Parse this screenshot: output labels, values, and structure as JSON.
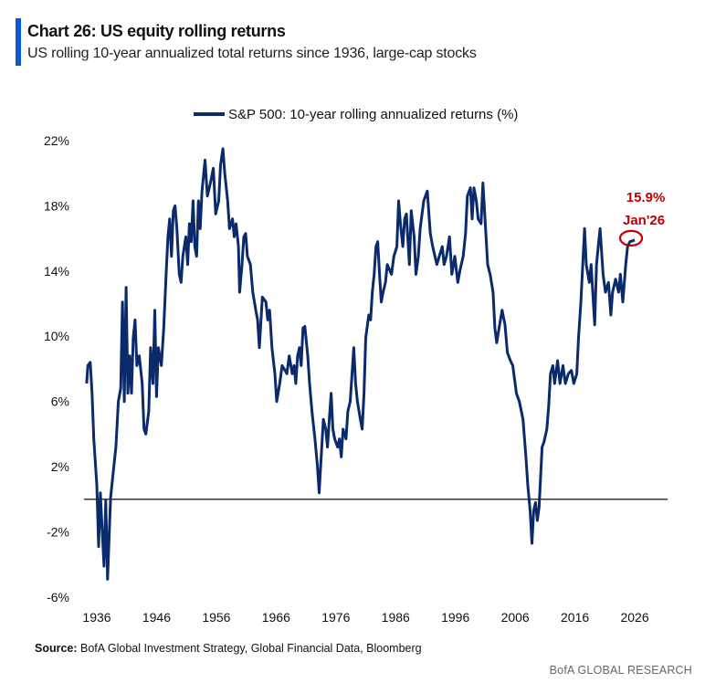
{
  "header": {
    "title": "Chart 26: US equity rolling returns",
    "subtitle": "US rolling 10-year annualized total returns since 1936, large-cap stocks"
  },
  "footer": {
    "source_label": "Source:",
    "source_text": " BofA Global Investment Strategy, Global Financial Data, Bloomberg",
    "brand": "BofA GLOBAL RESEARCH"
  },
  "chart_data": {
    "type": "line",
    "title": "Chart 26: US equity rolling returns",
    "subtitle": "US rolling 10-year annualized total returns since 1936, large-cap stocks",
    "xlabel": "",
    "ylabel": "",
    "xlim": [
      1934,
      2036
    ],
    "ylim": [
      -6,
      22
    ],
    "x_ticks": [
      1936,
      1946,
      1956,
      1966,
      1976,
      1986,
      1996,
      2006,
      2016,
      2026
    ],
    "y_ticks": [
      -6,
      -2,
      2,
      6,
      10,
      14,
      18,
      22
    ],
    "y_tick_labels": [
      "-6%",
      "-2%",
      "2%",
      "6%",
      "10%",
      "14%",
      "18%",
      "22%"
    ],
    "grid": false,
    "reference_line": 0,
    "legend_placement": "top-center",
    "colors": {
      "series": "#0a2a6b",
      "annotation": "#c00000",
      "reference_line": "#333333",
      "accent_bar": "#0a5bd3"
    },
    "annotation": {
      "value_label": "15.9%",
      "date_label": "Jan'26",
      "x": 2026.0,
      "y": 15.9
    },
    "series": [
      {
        "name": "S&P 500: 10-year rolling annualized returns (%)",
        "points": [
          [
            1934.3,
            7.1
          ],
          [
            1934.5,
            8.2
          ],
          [
            1934.9,
            8.4
          ],
          [
            1935.2,
            6.5
          ],
          [
            1935.5,
            3.7
          ],
          [
            1936.0,
            0.9
          ],
          [
            1936.3,
            -2.9
          ],
          [
            1936.6,
            0.4
          ],
          [
            1936.9,
            -1.9
          ],
          [
            1937.2,
            -4.1
          ],
          [
            1937.5,
            -0.1
          ],
          [
            1937.8,
            -4.9
          ],
          [
            1938.3,
            0.1
          ],
          [
            1938.7,
            1.5
          ],
          [
            1939.2,
            3.2
          ],
          [
            1939.6,
            6.0
          ],
          [
            1940.0,
            6.8
          ],
          [
            1940.3,
            12.1
          ],
          [
            1940.6,
            6.0
          ],
          [
            1940.9,
            13.0
          ],
          [
            1941.2,
            6.5
          ],
          [
            1941.5,
            8.8
          ],
          [
            1941.8,
            6.5
          ],
          [
            1942.1,
            9.9
          ],
          [
            1942.4,
            11.0
          ],
          [
            1942.7,
            8.2
          ],
          [
            1943.1,
            8.8
          ],
          [
            1943.6,
            7.1
          ],
          [
            1943.9,
            4.3
          ],
          [
            1944.2,
            4.0
          ],
          [
            1944.7,
            5.4
          ],
          [
            1945.0,
            9.3
          ],
          [
            1945.4,
            7.1
          ],
          [
            1945.7,
            11.6
          ],
          [
            1946.0,
            6.3
          ],
          [
            1946.3,
            9.3
          ],
          [
            1946.8,
            8.2
          ],
          [
            1947.2,
            10.5
          ],
          [
            1947.6,
            13.8
          ],
          [
            1947.9,
            16.1
          ],
          [
            1948.2,
            17.2
          ],
          [
            1948.5,
            14.9
          ],
          [
            1948.8,
            17.7
          ],
          [
            1949.1,
            18.0
          ],
          [
            1949.4,
            16.6
          ],
          [
            1949.8,
            13.8
          ],
          [
            1950.1,
            13.3
          ],
          [
            1950.4,
            14.9
          ],
          [
            1950.9,
            16.1
          ],
          [
            1951.2,
            14.4
          ],
          [
            1951.5,
            16.9
          ],
          [
            1951.8,
            15.8
          ],
          [
            1952.1,
            18.3
          ],
          [
            1952.4,
            15.5
          ],
          [
            1952.7,
            14.9
          ],
          [
            1953.0,
            18.3
          ],
          [
            1953.3,
            16.6
          ],
          [
            1953.6,
            18.9
          ],
          [
            1954.1,
            20.8
          ],
          [
            1954.5,
            18.6
          ],
          [
            1955.0,
            19.4
          ],
          [
            1955.5,
            20.3
          ],
          [
            1955.9,
            17.5
          ],
          [
            1956.4,
            18.3
          ],
          [
            1956.7,
            20.5
          ],
          [
            1957.1,
            21.5
          ],
          [
            1957.4,
            20.0
          ],
          [
            1957.9,
            18.3
          ],
          [
            1958.2,
            16.6
          ],
          [
            1958.7,
            17.2
          ],
          [
            1959.0,
            16.1
          ],
          [
            1959.3,
            16.9
          ],
          [
            1959.7,
            15.5
          ],
          [
            1959.9,
            12.7
          ],
          [
            1960.3,
            14.4
          ],
          [
            1960.6,
            16.1
          ],
          [
            1960.9,
            16.3
          ],
          [
            1961.2,
            14.9
          ],
          [
            1961.7,
            14.4
          ],
          [
            1962.1,
            12.7
          ],
          [
            1962.6,
            11.6
          ],
          [
            1962.9,
            11.0
          ],
          [
            1963.2,
            9.3
          ],
          [
            1963.7,
            12.4
          ],
          [
            1964.3,
            12.1
          ],
          [
            1964.6,
            11.0
          ],
          [
            1964.9,
            11.6
          ],
          [
            1965.3,
            9.3
          ],
          [
            1965.8,
            7.7
          ],
          [
            1966.1,
            6.0
          ],
          [
            1966.6,
            7.1
          ],
          [
            1967.0,
            8.2
          ],
          [
            1967.5,
            7.9
          ],
          [
            1967.8,
            7.7
          ],
          [
            1968.2,
            8.8
          ],
          [
            1968.7,
            7.7
          ],
          [
            1969.0,
            8.2
          ],
          [
            1969.3,
            7.1
          ],
          [
            1969.6,
            8.8
          ],
          [
            1969.9,
            9.3
          ],
          [
            1970.2,
            8.2
          ],
          [
            1970.5,
            10.5
          ],
          [
            1970.8,
            10.6
          ],
          [
            1971.3,
            8.8
          ],
          [
            1971.6,
            7.1
          ],
          [
            1972.0,
            5.4
          ],
          [
            1972.5,
            3.7
          ],
          [
            1972.9,
            2.1
          ],
          [
            1973.2,
            0.4
          ],
          [
            1973.5,
            2.3
          ],
          [
            1973.9,
            4.9
          ],
          [
            1974.3,
            4.3
          ],
          [
            1974.6,
            3.2
          ],
          [
            1974.9,
            4.9
          ],
          [
            1975.2,
            6.5
          ],
          [
            1975.5,
            4.3
          ],
          [
            1975.8,
            3.7
          ],
          [
            1976.3,
            3.2
          ],
          [
            1976.6,
            3.7
          ],
          [
            1976.9,
            2.6
          ],
          [
            1977.2,
            4.3
          ],
          [
            1977.7,
            3.7
          ],
          [
            1978.0,
            5.4
          ],
          [
            1978.4,
            6.0
          ],
          [
            1978.7,
            7.7
          ],
          [
            1979.0,
            9.3
          ],
          [
            1979.3,
            7.1
          ],
          [
            1979.6,
            6.0
          ],
          [
            1980.1,
            4.9
          ],
          [
            1980.4,
            4.3
          ],
          [
            1980.7,
            6.5
          ],
          [
            1981.0,
            9.9
          ],
          [
            1981.5,
            11.3
          ],
          [
            1981.8,
            11.0
          ],
          [
            1982.1,
            12.7
          ],
          [
            1982.4,
            13.8
          ],
          [
            1982.7,
            15.5
          ],
          [
            1983.0,
            15.8
          ],
          [
            1983.3,
            13.8
          ],
          [
            1983.6,
            12.1
          ],
          [
            1983.9,
            12.7
          ],
          [
            1984.3,
            13.3
          ],
          [
            1984.6,
            14.4
          ],
          [
            1985.3,
            13.8
          ],
          [
            1985.7,
            14.9
          ],
          [
            1986.2,
            15.5
          ],
          [
            1986.5,
            18.3
          ],
          [
            1986.8,
            16.9
          ],
          [
            1987.2,
            15.5
          ],
          [
            1987.5,
            17.2
          ],
          [
            1987.8,
            17.5
          ],
          [
            1988.3,
            14.4
          ],
          [
            1988.6,
            17.7
          ],
          [
            1989.1,
            16.1
          ],
          [
            1989.4,
            13.8
          ],
          [
            1989.8,
            14.9
          ],
          [
            1990.1,
            16.6
          ],
          [
            1990.7,
            18.3
          ],
          [
            1991.3,
            18.9
          ],
          [
            1991.8,
            16.3
          ],
          [
            1992.2,
            15.5
          ],
          [
            1992.9,
            14.4
          ],
          [
            1993.3,
            14.9
          ],
          [
            1993.8,
            15.5
          ],
          [
            1994.1,
            14.4
          ],
          [
            1994.5,
            14.9
          ],
          [
            1995.0,
            16.1
          ],
          [
            1995.4,
            13.8
          ],
          [
            1995.9,
            14.9
          ],
          [
            1996.4,
            13.3
          ],
          [
            1996.8,
            14.1
          ],
          [
            1997.3,
            14.9
          ],
          [
            1997.7,
            16.3
          ],
          [
            1998.0,
            18.6
          ],
          [
            1998.5,
            19.1
          ],
          [
            1998.8,
            17.2
          ],
          [
            1999.1,
            19.1
          ],
          [
            1999.5,
            18.3
          ],
          [
            1999.8,
            17.2
          ],
          [
            2000.3,
            16.9
          ],
          [
            2000.6,
            19.4
          ],
          [
            2000.9,
            17.5
          ],
          [
            2001.4,
            14.4
          ],
          [
            2001.8,
            13.8
          ],
          [
            2002.3,
            12.7
          ],
          [
            2002.6,
            10.5
          ],
          [
            2002.9,
            9.6
          ],
          [
            2003.3,
            10.5
          ],
          [
            2003.8,
            11.6
          ],
          [
            2004.3,
            10.7
          ],
          [
            2004.7,
            9.0
          ],
          [
            2005.2,
            8.5
          ],
          [
            2005.6,
            8.2
          ],
          [
            2006.2,
            6.5
          ],
          [
            2006.7,
            6.0
          ],
          [
            2007.3,
            4.9
          ],
          [
            2007.8,
            2.6
          ],
          [
            2008.1,
            0.9
          ],
          [
            2008.5,
            -0.7
          ],
          [
            2008.8,
            -2.7
          ],
          [
            2009.1,
            -0.7
          ],
          [
            2009.4,
            -0.2
          ],
          [
            2009.7,
            -1.3
          ],
          [
            2010.0,
            -0.5
          ],
          [
            2010.5,
            3.2
          ],
          [
            2010.8,
            3.5
          ],
          [
            2011.3,
            4.3
          ],
          [
            2011.6,
            5.7
          ],
          [
            2011.9,
            7.7
          ],
          [
            2012.3,
            8.2
          ],
          [
            2012.6,
            7.1
          ],
          [
            2013.1,
            8.5
          ],
          [
            2013.5,
            7.1
          ],
          [
            2014.0,
            8.2
          ],
          [
            2014.4,
            7.1
          ],
          [
            2014.9,
            7.7
          ],
          [
            2015.4,
            7.9
          ],
          [
            2015.8,
            7.1
          ],
          [
            2016.3,
            7.7
          ],
          [
            2016.6,
            9.9
          ],
          [
            2017.0,
            12.1
          ],
          [
            2017.6,
            16.6
          ],
          [
            2017.9,
            14.4
          ],
          [
            2018.4,
            13.3
          ],
          [
            2018.7,
            14.4
          ],
          [
            2019.3,
            10.7
          ],
          [
            2019.6,
            14.4
          ],
          [
            2019.9,
            15.5
          ],
          [
            2020.2,
            16.6
          ],
          [
            2020.7,
            13.8
          ],
          [
            2021.1,
            12.7
          ],
          [
            2021.6,
            13.3
          ],
          [
            2022.0,
            11.3
          ],
          [
            2022.3,
            12.7
          ],
          [
            2022.8,
            13.5
          ],
          [
            2023.3,
            12.7
          ],
          [
            2023.6,
            13.8
          ],
          [
            2024.0,
            12.1
          ],
          [
            2024.5,
            14.4
          ],
          [
            2024.8,
            15.5
          ],
          [
            2025.2,
            15.8
          ],
          [
            2026.0,
            15.9
          ]
        ]
      }
    ]
  }
}
